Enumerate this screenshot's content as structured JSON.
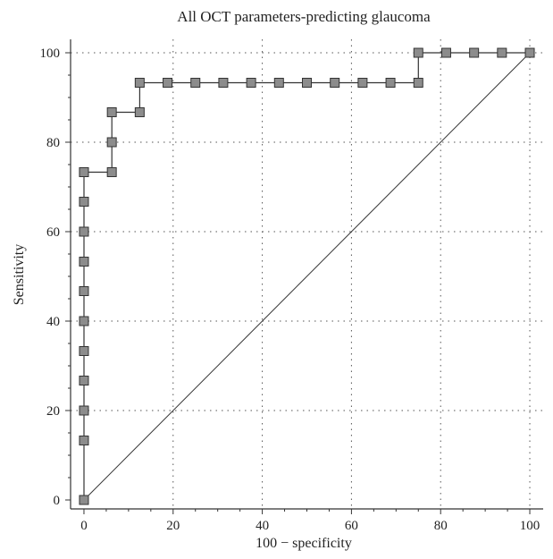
{
  "chart_data": {
    "type": "line",
    "title": "All OCT parameters-predicting glaucoma",
    "xlabel": "100 − specificity",
    "ylabel": "Sensitivity",
    "xlim": [
      -3,
      103
    ],
    "ylim": [
      -2,
      103
    ],
    "xticks": [
      0,
      20,
      40,
      60,
      80,
      100
    ],
    "yticks": [
      0,
      20,
      40,
      60,
      80,
      100
    ],
    "grid": "dotted",
    "marker": "square",
    "marker_color": "#8c8c8c",
    "line_color": "#333333",
    "series": [
      {
        "x": [
          0,
          0,
          0,
          0,
          0,
          0,
          0,
          0,
          0,
          0,
          0,
          0,
          6.25,
          6.25,
          6.25,
          12.5,
          12.5,
          18.75,
          25,
          31.25,
          37.5,
          43.75,
          50,
          56.25,
          62.5,
          68.75,
          75,
          75,
          81.25,
          87.5,
          93.75,
          100
        ],
        "y": [
          0,
          13.3,
          20,
          26.7,
          33.3,
          40,
          46.7,
          53.3,
          60,
          66.7,
          73.3,
          73.3,
          73.3,
          80,
          86.7,
          86.7,
          93.3,
          93.3,
          93.3,
          93.3,
          93.3,
          93.3,
          93.3,
          93.3,
          93.3,
          93.3,
          93.3,
          100,
          100,
          100,
          100,
          100
        ]
      }
    ],
    "reference_line": {
      "x": [
        0,
        100
      ],
      "y": [
        0,
        100
      ]
    }
  }
}
